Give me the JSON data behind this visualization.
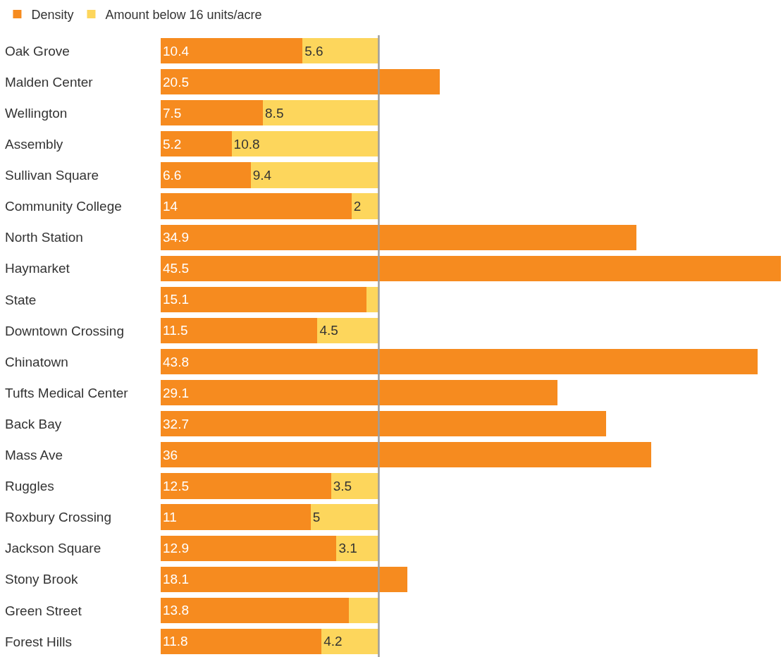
{
  "chart_data": {
    "type": "bar",
    "orientation": "horizontal",
    "stacked": true,
    "categories": [
      "Oak Grove",
      "Malden Center",
      "Wellington",
      "Assembly",
      "Sullivan Square",
      "Community College",
      "North Station",
      "Haymarket",
      "State",
      "Downtown Crossing",
      "Chinatown",
      "Tufts Medical Center",
      "Back Bay",
      "Mass Ave",
      "Ruggles",
      "Roxbury Crossing",
      "Jackson Square",
      "Stony Brook",
      "Green Street",
      "Forest Hills"
    ],
    "series": [
      {
        "name": "Density",
        "color": "#f68b1f",
        "values": [
          10.4,
          20.5,
          7.5,
          5.2,
          6.6,
          14,
          34.9,
          45.5,
          15.1,
          11.5,
          43.8,
          29.1,
          32.7,
          36,
          12.5,
          11,
          12.9,
          18.1,
          13.8,
          11.8
        ],
        "value_labels": [
          "10.4",
          "20.5",
          "7.5",
          "5.2",
          "6.6",
          "14",
          "34.9",
          "45.5",
          "15.1",
          "11.5",
          "43.8",
          "29.1",
          "32.7",
          "36",
          "12.5",
          "11",
          "12.9",
          "18.1",
          "13.8",
          "11.8"
        ]
      },
      {
        "name": "Amount below 16 units/acre",
        "color": "#fdd65c",
        "values": [
          5.6,
          null,
          8.5,
          10.8,
          9.4,
          2,
          null,
          null,
          0.9,
          4.5,
          null,
          null,
          null,
          null,
          3.5,
          5,
          3.1,
          null,
          2.2,
          4.2
        ],
        "value_labels": [
          "5.6",
          null,
          "8.5",
          "10.8",
          "9.4",
          "2",
          null,
          null,
          null,
          "4.5",
          null,
          null,
          null,
          null,
          "3.5",
          "5",
          "3.1",
          null,
          null,
          "4.2"
        ]
      }
    ],
    "xlim": [
      0,
      45.5
    ],
    "ref_lines": [
      {
        "axis": "x",
        "value": 16,
        "color": "#9e9e9e"
      }
    ],
    "tick_labels": "y",
    "legend": "top left"
  }
}
